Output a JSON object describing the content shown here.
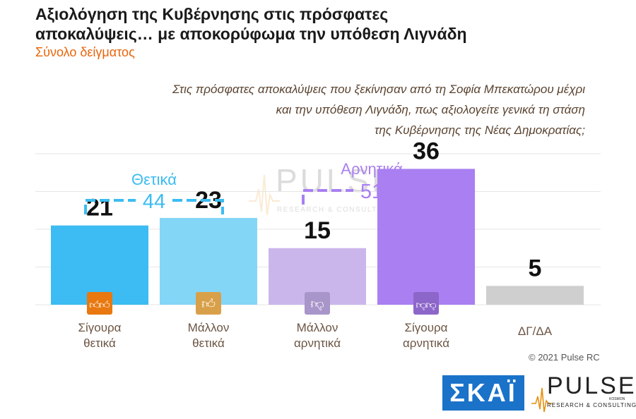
{
  "header": {
    "title_line1": "Αξιολόγηση της Κυβέρνησης στις πρόσφατες",
    "title_line2": "αποκαλύψεις… με αποκορύφωμα την υπόθεση Λιγνάδη",
    "subtitle": "Σύνολο δείγματος"
  },
  "question": {
    "line1": "Στις πρόσφατες αποκαλύψεις που ξεκίνησαν από τη Σοφία Μπεκατώρου μέχρι",
    "line2": "και την υπόθεση Λιγνάδη, πως αξιολογείτε γενικά τη στάση",
    "line3": "της Κυβέρνησης της Νέας Δημοκρατίας;"
  },
  "chart_data": {
    "type": "bar",
    "categories": [
      [
        "Σίγουρα",
        "θετικά"
      ],
      [
        "Μάλλον",
        "θετικά"
      ],
      [
        "Μάλλον",
        "αρνητικά"
      ],
      [
        "Σίγουρα",
        "αρνητικά"
      ],
      [
        "ΔΓ/ΔΑ"
      ]
    ],
    "values": [
      21,
      23,
      15,
      36,
      5
    ],
    "colors": [
      "#3cbcf2",
      "#84d6f7",
      "#cbb6ec",
      "#a97ff2",
      "#cfcfcf"
    ],
    "icons": [
      "two-thumbs-up-icon",
      "thumb-up-icon",
      "thumb-down-icon",
      "two-thumbs-down-icon",
      null
    ],
    "icon_colors": [
      "#e8780f",
      "#d9a04a",
      "#a895c9",
      "#8c66c9",
      null
    ],
    "groups": [
      {
        "label": "Θετικά",
        "total": "44",
        "color": "#3cbcf2",
        "members": [
          0,
          1
        ]
      },
      {
        "label": "Αρνητικά",
        "total": "51",
        "color": "#a97ff2",
        "members": [
          2,
          3
        ]
      }
    ],
    "ylim": [
      0,
      40
    ],
    "grid": true
  },
  "watermark": {
    "word": "PULSE",
    "sub": "RESEARCH & CONSULTING"
  },
  "footer": {
    "copyright": "© 2021 Pulse RC",
    "skai_logo": "ΣΚΑΪ",
    "pulse_logo": "PULSE",
    "pulse_logo_sub": "RESEARCH & CONSULTING",
    "pulse_logo_tag": "KOSMON"
  }
}
